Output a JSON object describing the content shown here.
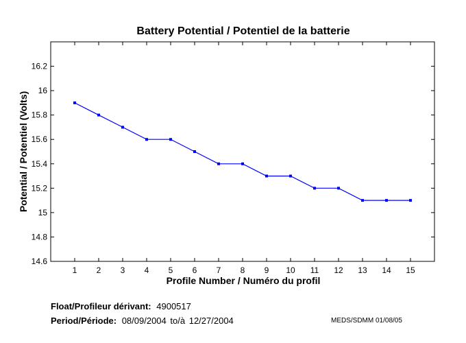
{
  "chart_data": {
    "type": "line",
    "title": "Battery Potential / Potentiel de la batterie",
    "xlabel": "Profile Number / Numéro du profil",
    "ylabel": "Potential / Potentiel (Volts)",
    "xlim": [
      0,
      16
    ],
    "ylim": [
      14.6,
      16.4
    ],
    "xticks": [
      1,
      2,
      3,
      4,
      5,
      6,
      7,
      8,
      9,
      10,
      11,
      12,
      13,
      14,
      15
    ],
    "yticks": [
      14.6,
      14.8,
      15,
      15.2,
      15.4,
      15.6,
      15.8,
      16,
      16.2
    ],
    "ytick_labels": [
      "14.6",
      "14.8",
      "15",
      "15.2",
      "15.4",
      "15.6",
      "15.8",
      "16",
      "16.2"
    ],
    "grid": false,
    "series": [
      {
        "x": [
          1,
          2,
          3,
          4,
          5,
          6,
          7,
          8,
          9,
          10,
          11,
          12,
          13,
          14,
          15
        ],
        "values": [
          15.9,
          15.8,
          15.7,
          15.6,
          15.6,
          15.5,
          15.4,
          15.4,
          15.3,
          15.3,
          15.2,
          15.2,
          15.1,
          15.1,
          15.1
        ],
        "color": "#0000ff"
      }
    ]
  },
  "footer": {
    "float_label": "Float/Profileur dérivant:",
    "float_value": "4900517",
    "period_label": "Period/Période:",
    "period_start": "08/09/2004",
    "period_to": "to/à",
    "period_end": "12/27/2004",
    "credit": "MEDS/SDMM  01/08/05"
  }
}
